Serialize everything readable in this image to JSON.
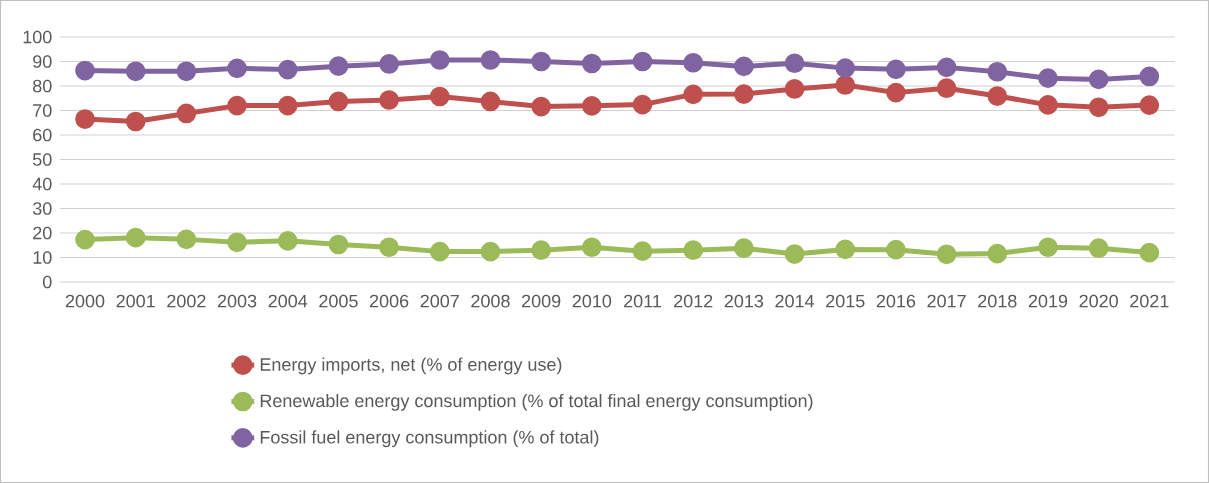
{
  "chart_data": {
    "type": "line",
    "categories": [
      "2000",
      "2001",
      "2002",
      "2003",
      "2004",
      "2005",
      "2006",
      "2007",
      "2008",
      "2009",
      "2010",
      "2011",
      "2012",
      "2013",
      "2014",
      "2015",
      "2016",
      "2017",
      "2018",
      "2019",
      "2020",
      "2021"
    ],
    "series": [
      {
        "name": "Energy imports, net (% of energy use)",
        "color": "#c0504d",
        "values": [
          66.5,
          65.5,
          68.8,
          72.0,
          72.0,
          73.7,
          74.3,
          75.7,
          73.7,
          71.6,
          71.9,
          72.4,
          76.6,
          76.7,
          78.8,
          80.4,
          77.3,
          79.1,
          75.9,
          72.3,
          71.3,
          72.2
        ]
      },
      {
        "name": "Renewable energy consumption (% of total final energy consumption)",
        "color": "#9bbb59",
        "values": [
          17.3,
          18.1,
          17.4,
          16.2,
          16.8,
          15.3,
          14.2,
          12.4,
          12.4,
          13.0,
          14.2,
          12.6,
          13.0,
          13.8,
          11.4,
          13.3,
          13.2,
          11.3,
          11.6,
          14.2,
          13.8,
          12.0
        ]
      },
      {
        "name": "Fossil fuel energy consumption (% of total)",
        "color": "#8064a2",
        "values": [
          86.3,
          86.0,
          86.0,
          87.2,
          86.7,
          88.1,
          89.0,
          90.6,
          90.6,
          90.0,
          89.2,
          90.0,
          89.5,
          88.0,
          89.3,
          87.3,
          86.8,
          87.6,
          85.8,
          83.2,
          82.7,
          83.9
        ]
      }
    ],
    "ylim": [
      0,
      100
    ],
    "yticks": [
      0,
      10,
      20,
      30,
      40,
      50,
      60,
      70,
      80,
      90,
      100
    ],
    "grid": "y",
    "legend": "bottom",
    "marker": "circle",
    "line_style": "solid"
  }
}
